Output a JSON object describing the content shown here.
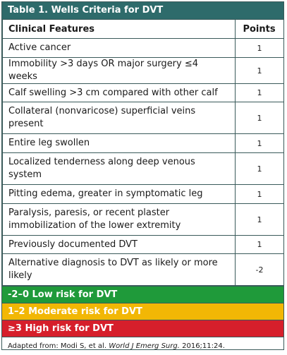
{
  "title": "Table 1. Wells Criteria for DVT",
  "headers": {
    "feature": "Clinical Features",
    "points": "Points"
  },
  "rows": [
    {
      "feature": "Active cancer",
      "points": "1"
    },
    {
      "feature": "Immobility >3 days OR major surgery ≤4 weeks",
      "points": "1"
    },
    {
      "feature": "Calf swelling >3 cm compared with other calf",
      "points": "1"
    },
    {
      "feature": "Collateral (nonvaricose) superficial veins present",
      "points": "1"
    },
    {
      "feature": "Entire leg swollen",
      "points": "1"
    },
    {
      "feature": "Localized tenderness along deep venous system",
      "points": "1"
    },
    {
      "feature": "Pitting edema, greater in symptomatic leg",
      "points": "1"
    },
    {
      "feature": "Paralysis, paresis, or recent plaster immobilization of the lower extremity",
      "points": "1"
    },
    {
      "feature": "Previously documented DVT",
      "points": "1"
    },
    {
      "feature": "Alternative diagnosis to DVT as likely or more likely",
      "points": "-2"
    }
  ],
  "risk": {
    "low": "-2–0 Low risk for DVT",
    "moderate": "1–2 Moderate risk for DVT",
    "high": "≥3 High risk for DVT"
  },
  "colors": {
    "header": "#2e6b6b",
    "low": "#1f9a3a",
    "moderate": "#f2b705",
    "high": "#d61f2b"
  },
  "footnote": {
    "prefix": "Adapted from: Modi S, et al. ",
    "journal": "World J Emerg Surg.",
    "suffix": " 2016;11:24."
  }
}
